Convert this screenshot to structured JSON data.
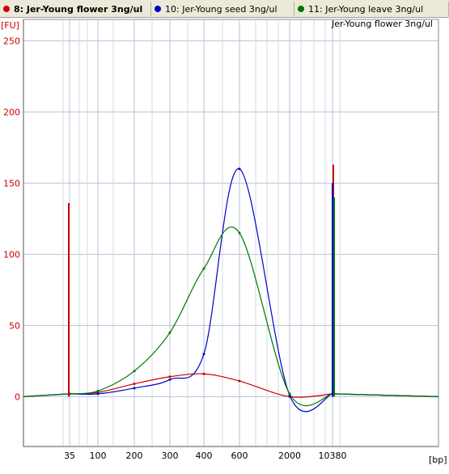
{
  "tabs": [
    {
      "label": "8: Jer-Young flower 3ng/ul",
      "color": "#cc0000",
      "active": true
    },
    {
      "label": "10: Jer-Young seed 3ng/ul",
      "color": "#0000cc",
      "active": false
    },
    {
      "label": "11: Jer-Young leave 3ng/ul",
      "color": "#007700",
      "active": false
    }
  ],
  "chart_data": {
    "type": "line",
    "title": "Jer-Young flower 3ng/ul",
    "ylabel": "[FU]",
    "xlabel": "[bp]",
    "ylim": [
      -35,
      265
    ],
    "yticks": [
      0,
      50,
      100,
      150,
      200,
      250
    ],
    "xticks": [
      "35",
      "100",
      "200",
      "300",
      "400",
      "600",
      "2000",
      "10380"
    ],
    "grid": true,
    "colors": {
      "flower": "#cc0000",
      "seed": "#0000cc",
      "leave": "#007700"
    },
    "series": [
      {
        "name": "8: Jer-Young flower 3ng/ul",
        "color": "#cc0000",
        "x": [
          "35",
          "100",
          "200",
          "300",
          "400",
          "600",
          "2000",
          "10380"
        ],
        "y": [
          2,
          3,
          9,
          14,
          16,
          11,
          0,
          2
        ]
      },
      {
        "name": "10: Jer-Young seed 3ng/ul",
        "color": "#0000cc",
        "x": [
          "35",
          "100",
          "200",
          "300",
          "400",
          "600",
          "2000",
          "10380"
        ],
        "y": [
          2,
          2,
          6,
          12,
          30,
          160,
          1,
          2
        ]
      },
      {
        "name": "11: Jer-Young leave 3ng/ul",
        "color": "#007700",
        "x": [
          "35",
          "100",
          "200",
          "300",
          "400",
          "600",
          "2000",
          "10380"
        ],
        "y": [
          2,
          4,
          18,
          45,
          90,
          115,
          2,
          2
        ]
      }
    ]
  }
}
